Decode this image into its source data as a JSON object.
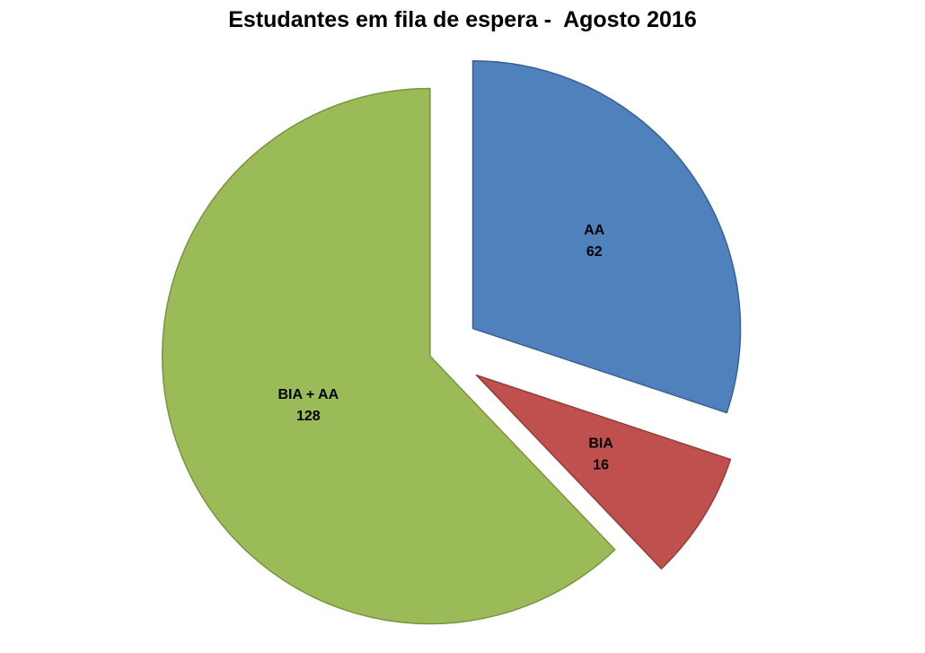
{
  "page": {
    "background": "#FFFFFF"
  },
  "chart_data": {
    "type": "pie",
    "title": "Estudantes em fila de espera -  Agosto 2016",
    "total": 206,
    "start_angle_deg": 0,
    "direction": "clockwise",
    "legend": "none",
    "label_text_color": "#000000",
    "slices": [
      {
        "label": "AA",
        "value": 62,
        "color": "#4F81BD",
        "border_color": "#3A6191",
        "explode": 45,
        "label_r": 0.56
      },
      {
        "label": "BIA",
        "value": 16,
        "color": "#C0504D",
        "border_color": "#943D3B",
        "explode": 48,
        "label_r": 0.55
      },
      {
        "label": "BIA + AA",
        "value": 128,
        "color": "#9BBB59",
        "border_color": "#79953F",
        "explode": 12,
        "label_r": 0.49
      }
    ]
  }
}
